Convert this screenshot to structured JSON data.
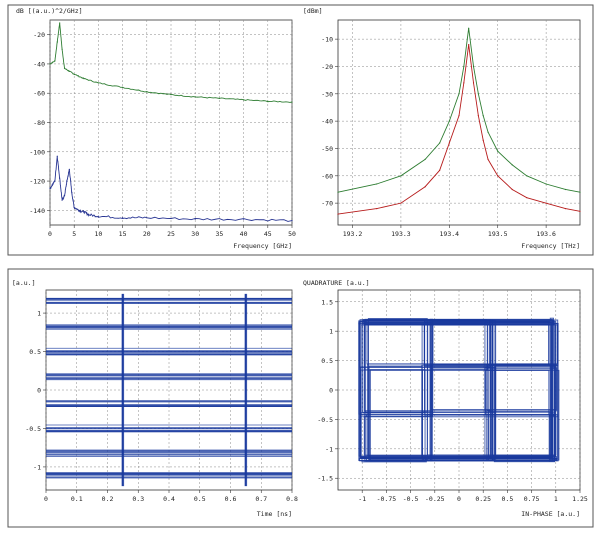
{
  "chart_data": [
    {
      "type": "line",
      "ylabel": "dB [(a.u.)^2/GHz]",
      "xlabel": "Frequency [GHz]",
      "xlim": [
        0,
        50
      ],
      "ylim": [
        -150,
        -10
      ],
      "xticks": [
        "0",
        "5",
        "10",
        "15",
        "20",
        "25",
        "30",
        "35",
        "40",
        "45",
        "50"
      ],
      "yticks": [
        "-20",
        "-40",
        "-60",
        "-80",
        "-100",
        "-120",
        "-140"
      ],
      "grid": true,
      "series": [
        {
          "color": "#2e7d32",
          "x": [
            0,
            1,
            1.5,
            2,
            2.5,
            3,
            4,
            5,
            7,
            10,
            15,
            20,
            25,
            30,
            35,
            40,
            45,
            50
          ],
          "values": [
            -40,
            -38,
            -25,
            -12,
            -30,
            -43,
            -45,
            -47,
            -50,
            -53,
            -56,
            -59,
            -61,
            -62.5,
            -63.5,
            -64.5,
            -65.5,
            -66
          ]
        },
        {
          "color": "#283593",
          "x": [
            0,
            1,
            1.5,
            2,
            2.5,
            3,
            3.5,
            4,
            4.5,
            5,
            6,
            7,
            8,
            10,
            15,
            20,
            30,
            40,
            50
          ],
          "values": [
            -125,
            -120,
            -103,
            -118,
            -133,
            -130,
            -120,
            -112,
            -128,
            -138,
            -140,
            -141,
            -143,
            -144,
            -145,
            -145,
            -146,
            -146,
            -147
          ]
        }
      ]
    },
    {
      "type": "line",
      "ylabel": "[dBm]",
      "xlabel": "Frequency [THz]",
      "xlim": [
        193.17,
        193.67
      ],
      "ylim": [
        -78,
        -3
      ],
      "xticks": [
        "193.2",
        "193.3",
        "193.4",
        "193.5",
        "193.6"
      ],
      "xtick_values": [
        193.2,
        193.3,
        193.4,
        193.5,
        193.6
      ],
      "yticks": [
        "-10",
        "-20",
        "-30",
        "-40",
        "-50",
        "-60",
        "-70"
      ],
      "grid": true,
      "series": [
        {
          "color": "#2e7d32",
          "x": [
            193.17,
            193.25,
            193.3,
            193.35,
            193.38,
            193.4,
            193.42,
            193.43,
            193.44,
            193.45,
            193.46,
            193.47,
            193.48,
            193.5,
            193.53,
            193.56,
            193.6,
            193.64,
            193.67
          ],
          "values": [
            -66,
            -63,
            -60,
            -54,
            -48,
            -40,
            -30,
            -20,
            -6,
            -20,
            -30,
            -38,
            -44,
            -51,
            -56,
            -60,
            -63,
            -65,
            -66
          ]
        },
        {
          "color": "#b71c1c",
          "x": [
            193.17,
            193.25,
            193.3,
            193.35,
            193.38,
            193.4,
            193.42,
            193.43,
            193.44,
            193.45,
            193.46,
            193.47,
            193.48,
            193.5,
            193.53,
            193.56,
            193.6,
            193.64,
            193.67
          ],
          "values": [
            -74,
            -72,
            -70,
            -64,
            -58,
            -48,
            -38,
            -26,
            -12,
            -26,
            -38,
            -47,
            -54,
            -60,
            -65,
            -68,
            -70,
            -72,
            -73
          ]
        }
      ]
    },
    {
      "type": "line",
      "ylabel": "[a.u.]",
      "xlabel": "Time [ns]",
      "xlim": [
        0,
        0.8
      ],
      "ylim": [
        -1.3,
        1.3
      ],
      "xticks": [
        "0",
        "0.1",
        "0.2",
        "0.3",
        "0.4",
        "0.5",
        "0.6",
        "0.7",
        "0.8"
      ],
      "yticks": [
        "1",
        "0.5",
        "0",
        "-0.5",
        "-1"
      ],
      "grid": true,
      "eye_levels": [
        1.15,
        0.82,
        0.5,
        0.17,
        -0.17,
        -0.5,
        -0.82,
        -1.1
      ],
      "transitions": [
        0.25,
        0.65
      ],
      "series": [
        {
          "color": "#1a3a9e",
          "name": ""
        }
      ]
    },
    {
      "type": "scatter",
      "ylabel": "QUADRATURE [a.u.]",
      "xlabel": "IN-PHASE [a.u.]",
      "xlim": [
        -1.25,
        1.25
      ],
      "ylim": [
        -1.7,
        1.7
      ],
      "xticks": [
        "-1",
        "-0.75",
        "-0.5",
        "-0.25",
        "0",
        "0.25",
        "0.5",
        "0.75",
        "1",
        "1.25"
      ],
      "yticks": [
        "1.5",
        "1",
        "0.5",
        "0",
        "-0.5",
        "-1",
        "-1.5"
      ],
      "grid": true,
      "constellation_levels": [
        -0.75,
        -0.25,
        0.25,
        0.75
      ],
      "series": [
        {
          "color": "#1a3a9e",
          "name": ""
        }
      ]
    }
  ]
}
